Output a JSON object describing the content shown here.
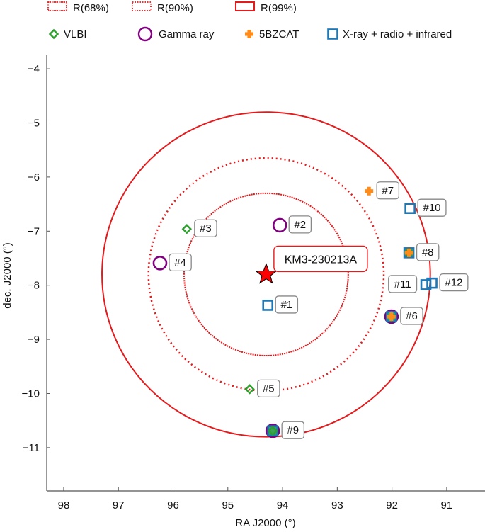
{
  "chart_data": {
    "type": "scatter",
    "title": "",
    "xlabel": "RA J2000 (°)",
    "ylabel": "dec. J2000 (°)",
    "xlim": [
      98.31,
      90.3
    ],
    "ylim": [
      -11.8,
      -3.75
    ],
    "x_reversed": true,
    "grid": false,
    "x_ticks": [
      98,
      97,
      96,
      95,
      94,
      93,
      92,
      91
    ],
    "y_ticks": [
      -4,
      -5,
      -6,
      -7,
      -8,
      -9,
      -10,
      -11
    ],
    "x_tick_labels": [
      "98",
      "97",
      "96",
      "95",
      "94",
      "93",
      "92",
      "91"
    ],
    "y_tick_labels": [
      "−4",
      "−5",
      "−6",
      "−7",
      "−8",
      "−9",
      "−10",
      "−11"
    ],
    "event": {
      "name": "KM3-230213A",
      "ra": 94.3,
      "dec": -7.8,
      "color": "#ff0000"
    },
    "regions": [
      {
        "name": "R(68%)",
        "radius_deg": 1.5,
        "style": "dashed-fine",
        "color": "#e41a1c"
      },
      {
        "name": "R(90%)",
        "radius_deg": 2.15,
        "style": "dotted",
        "color": "#e41a1c"
      },
      {
        "name": "R(99%)",
        "radius_deg": 3.0,
        "style": "solid",
        "color": "#e41a1c"
      }
    ],
    "legend_regions": [
      {
        "label": "R(68%)",
        "style": "dashed-fine"
      },
      {
        "label": "R(90%)",
        "style": "dotted"
      },
      {
        "label": "R(99%)",
        "style": "solid"
      }
    ],
    "legend_markers": [
      {
        "label": "VLBI",
        "marker": "diamond",
        "color": "#2ca02c"
      },
      {
        "label": "Gamma ray",
        "marker": "circle",
        "color": "#800080"
      },
      {
        "label": "5BZCAT",
        "marker": "cross",
        "color": "#ff8c1a"
      },
      {
        "label": "X-ray + radio + infrared",
        "marker": "square",
        "color": "#1f77b4"
      }
    ],
    "legend_placement": "top",
    "points": [
      {
        "id": "#1",
        "ra": 94.27,
        "dec": -8.37,
        "types": [
          "square"
        ],
        "label_side": "right"
      },
      {
        "id": "#2",
        "ra": 94.05,
        "dec": -6.89,
        "types": [
          "circle"
        ],
        "label_side": "right"
      },
      {
        "id": "#3",
        "ra": 95.75,
        "dec": -6.96,
        "types": [
          "diamond"
        ],
        "label_side": "right"
      },
      {
        "id": "#4",
        "ra": 96.24,
        "dec": -7.59,
        "types": [
          "circle"
        ],
        "label_side": "right"
      },
      {
        "id": "#5",
        "ra": 94.6,
        "dec": -9.92,
        "types": [
          "diamond"
        ],
        "label_side": "right"
      },
      {
        "id": "#6",
        "ra": 92.01,
        "dec": -8.58,
        "types": [
          "circle",
          "square",
          "diamond",
          "cross"
        ],
        "label_side": "right"
      },
      {
        "id": "#7",
        "ra": 92.42,
        "dec": -6.26,
        "types": [
          "cross"
        ],
        "label_side": "right"
      },
      {
        "id": "#8",
        "ra": 91.69,
        "dec": -7.4,
        "types": [
          "square",
          "diamond",
          "cross"
        ],
        "label_side": "right"
      },
      {
        "id": "#9",
        "ra": 94.18,
        "dec": -10.69,
        "types": [
          "circle",
          "square",
          "diamond"
        ],
        "label_side": "right"
      },
      {
        "id": "#10",
        "ra": 91.67,
        "dec": -6.58,
        "types": [
          "square"
        ],
        "label_side": "right"
      },
      {
        "id": "#11",
        "ra": 91.38,
        "dec": -7.99,
        "types": [
          "square"
        ],
        "label_side": "left"
      },
      {
        "id": "#12",
        "ra": 91.27,
        "dec": -7.96,
        "types": [
          "square"
        ],
        "label_side": "right"
      }
    ]
  }
}
